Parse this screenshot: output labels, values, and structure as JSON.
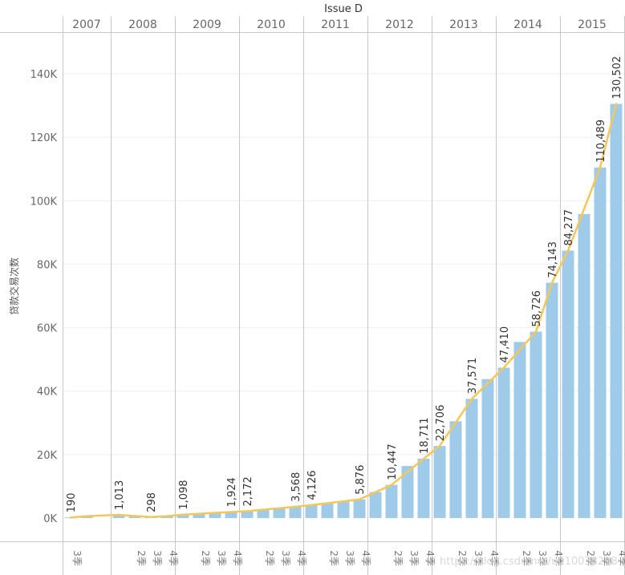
{
  "chart_data": {
    "type": "bar",
    "title": "Issue D",
    "ylabel": "贷款交易次数",
    "ylim": [
      0,
      150000
    ],
    "yticks": [
      0,
      20000,
      40000,
      60000,
      80000,
      100000,
      120000,
      140000
    ],
    "ytick_labels": [
      "0K",
      "20K",
      "40K",
      "60K",
      "80K",
      "100K",
      "120K",
      "140K"
    ],
    "quarter_labels": {
      "q2": "2季",
      "q3": "3季",
      "q4": "4季"
    },
    "years": [
      {
        "year": "2007",
        "quarters": [
          3,
          4
        ],
        "values": [
          190,
          600
        ]
      },
      {
        "year": "2008",
        "quarters": [
          1,
          2,
          3,
          4
        ],
        "values": [
          1013,
          520,
          298,
          600
        ]
      },
      {
        "year": "2009",
        "quarters": [
          1,
          2,
          3,
          4
        ],
        "values": [
          1098,
          1250,
          1500,
          1924
        ]
      },
      {
        "year": "2010",
        "quarters": [
          1,
          2,
          3,
          4
        ],
        "values": [
          2172,
          2700,
          3100,
          3568
        ]
      },
      {
        "year": "2011",
        "quarters": [
          1,
          2,
          3,
          4
        ],
        "values": [
          4126,
          4700,
          5300,
          5876
        ]
      },
      {
        "year": "2012",
        "quarters": [
          1,
          2,
          3,
          4
        ],
        "values": [
          8200,
          10447,
          16400,
          18711
        ]
      },
      {
        "year": "2013",
        "quarters": [
          1,
          2,
          3,
          4
        ],
        "values": [
          22706,
          30500,
          37571,
          43800
        ]
      },
      {
        "year": "2014",
        "quarters": [
          1,
          2,
          3,
          4
        ],
        "values": [
          47410,
          55500,
          58726,
          74143
        ]
      },
      {
        "year": "2015",
        "quarters": [
          1,
          2,
          3,
          4
        ],
        "values": [
          84277,
          95800,
          110489,
          130502
        ]
      }
    ],
    "data_labels": [
      {
        "year": "2007",
        "quarter": 3,
        "text": "190"
      },
      {
        "year": "2008",
        "quarter": 1,
        "text": "1,013"
      },
      {
        "year": "2008",
        "quarter": 3,
        "text": "298"
      },
      {
        "year": "2009",
        "quarter": 1,
        "text": "1,098"
      },
      {
        "year": "2009",
        "quarter": 4,
        "text": "1,924"
      },
      {
        "year": "2010",
        "quarter": 1,
        "text": "2,172"
      },
      {
        "year": "2010",
        "quarter": 4,
        "text": "3,568"
      },
      {
        "year": "2011",
        "quarter": 1,
        "text": "4,126"
      },
      {
        "year": "2011",
        "quarter": 4,
        "text": "5,876"
      },
      {
        "year": "2012",
        "quarter": 2,
        "text": "10,447"
      },
      {
        "year": "2012",
        "quarter": 4,
        "text": "18,711"
      },
      {
        "year": "2013",
        "quarter": 1,
        "text": "22,706"
      },
      {
        "year": "2013",
        "quarter": 3,
        "text": "37,571"
      },
      {
        "year": "2014",
        "quarter": 1,
        "text": "47,410"
      },
      {
        "year": "2014",
        "quarter": 3,
        "text": "58,726"
      },
      {
        "year": "2014",
        "quarter": 4,
        "text": "74,143"
      },
      {
        "year": "2015",
        "quarter": 1,
        "text": "84,277"
      },
      {
        "year": "2015",
        "quarter": 3,
        "text": "110,489"
      },
      {
        "year": "2015",
        "quarter": 4,
        "text": "130,502"
      }
    ],
    "trend_line": [
      {
        "year": "2007",
        "quarter": 3,
        "value": 190
      },
      {
        "year": "2007",
        "quarter": 4,
        "value": 600
      },
      {
        "year": "2008",
        "quarter": 1,
        "value": 1013
      },
      {
        "year": "2008",
        "quarter": 3,
        "value": 298
      },
      {
        "year": "2008",
        "quarter": 4,
        "value": 600
      },
      {
        "year": "2009",
        "quarter": 1,
        "value": 1098
      },
      {
        "year": "2009",
        "quarter": 4,
        "value": 1924
      },
      {
        "year": "2010",
        "quarter": 1,
        "value": 2172
      },
      {
        "year": "2010",
        "quarter": 4,
        "value": 3568
      },
      {
        "year": "2011",
        "quarter": 1,
        "value": 4126
      },
      {
        "year": "2011",
        "quarter": 4,
        "value": 5876
      },
      {
        "year": "2012",
        "quarter": 1,
        "value": 8200
      },
      {
        "year": "2012",
        "quarter": 2,
        "value": 10447
      },
      {
        "year": "2012",
        "quarter": 4,
        "value": 18711
      },
      {
        "year": "2013",
        "quarter": 1,
        "value": 22706
      },
      {
        "year": "2013",
        "quarter": 3,
        "value": 37571
      },
      {
        "year": "2014",
        "quarter": 1,
        "value": 47410
      },
      {
        "year": "2014",
        "quarter": 3,
        "value": 58726
      },
      {
        "year": "2014",
        "quarter": 4,
        "value": 74143
      },
      {
        "year": "2015",
        "quarter": 1,
        "value": 84277
      },
      {
        "year": "2015",
        "quarter": 3,
        "value": 110489
      },
      {
        "year": "2015",
        "quarter": 4,
        "value": 130502
      }
    ],
    "grid": true
  },
  "colors": {
    "bar": "#9fcae8",
    "line": "#f2c85b",
    "divider": "#c8c8c8",
    "gridline": "#eeeeee",
    "axis_text": "#666666"
  },
  "watermark": "https://blog.csdn.net/u010038298"
}
